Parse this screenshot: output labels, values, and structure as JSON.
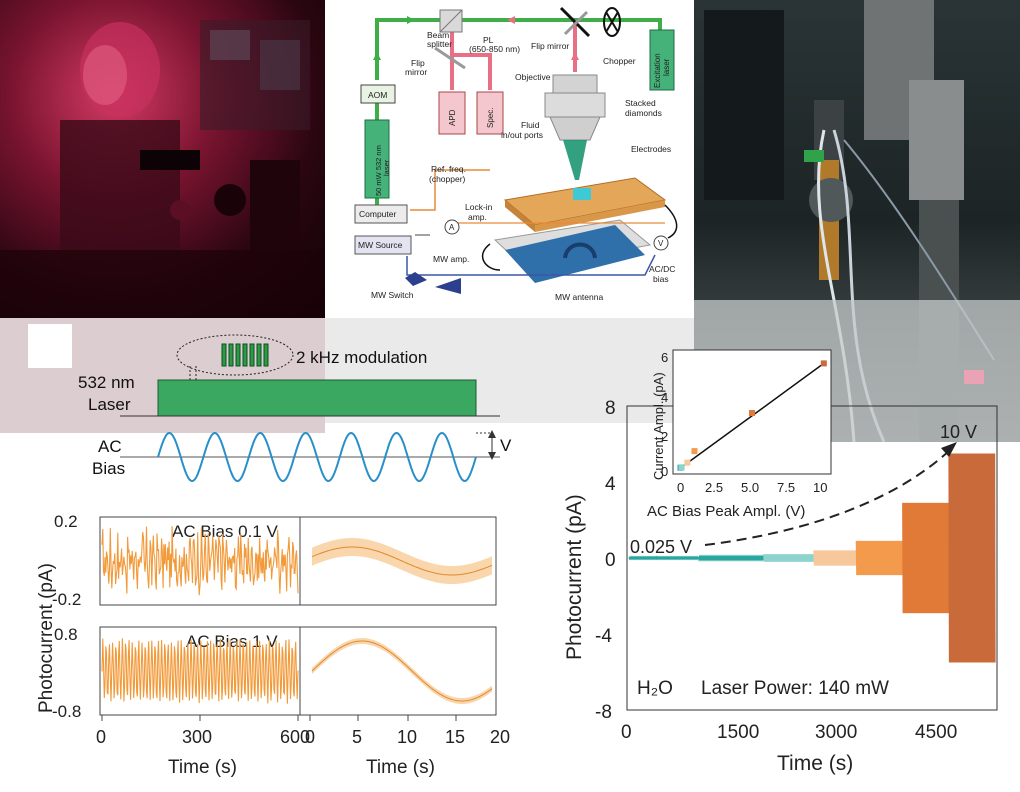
{
  "figure": {
    "schematic": {
      "labels": {
        "beam_splitter": "Beam\nsplitter",
        "pl": "PL\n(650-850 nm)",
        "flip_mirror_top": "Flip mirror",
        "chopper": "Chopper",
        "excitation_laser": "Excitation\nlaser",
        "flip_mirror_left": "Flip\nmirror",
        "objective": "Objective",
        "aom": "AOM",
        "laser_50mw": "50 mW 532 nm\nlaser",
        "apd": "APD",
        "spec": "Spec.",
        "fluid_ports": "Fluid\nin/out ports",
        "stacked_diamonds": "Stacked\ndiamonds",
        "electrodes": "Electrodes",
        "ref_freq": "Ref. freq.\n(chopper)",
        "computer": "Computer",
        "lockin": "Lock-in\namp.",
        "a_meter": "A",
        "v_meter": "V",
        "mw_source": "MW Source",
        "mw_amp": "MW amp.",
        "mw_switch": "MW Switch",
        "mw_antenna": "MW antenna",
        "acdc_bias": "AC/DC\nbias"
      }
    },
    "timing": {
      "modulation_label": "2 kHz modulation",
      "laser_label": "532 nm\nLaser",
      "ac_label": "AC",
      "bias_label": "Bias",
      "v_label": "V"
    },
    "left_plots": {
      "ylabel": "Photocurrent (pA)",
      "xlabel_left": "Time (s)",
      "xlabel_right": "Time (s)",
      "top_title": "AC Bias 0.1 V",
      "bottom_title": "AC Bias 1 V",
      "top_yticks": [
        "0.2",
        "-0.2"
      ],
      "bottom_yticks": [
        "0.8",
        "-0.8"
      ],
      "x_ticks_left": [
        "0",
        "300",
        "600"
      ],
      "x_ticks_right": [
        "0",
        "5",
        "10",
        "15",
        "20"
      ]
    },
    "right_plot": {
      "ylabel": "Photocurrent (pA)",
      "xlabel": "Time (s)",
      "yticks": [
        "8",
        "4",
        "0",
        "-4",
        "-8"
      ],
      "xticks": [
        "0",
        "1500",
        "3000",
        "4500"
      ],
      "ann_low": "0.025 V",
      "ann_high": "10 V",
      "solvent": "H₂O",
      "power": "Laser Power: 140 mW",
      "inset": {
        "ylabel": "Current Ampl. (pA)",
        "xlabel": "AC Bias Peak Ampl. (V)",
        "yticks": [
          "6",
          "4",
          "2",
          "0"
        ],
        "xticks": [
          "0",
          "2.5",
          "5.0",
          "7.5",
          "10"
        ]
      }
    }
  },
  "chart_data": [
    {
      "type": "line",
      "ylabel": "Photocurrent (pA)",
      "xlabel": "Time (s)",
      "xlim": [
        0,
        600
      ],
      "ylim": [
        -0.2,
        0.2
      ],
      "annotation": "AC Bias 0.1 V"
    },
    {
      "type": "line",
      "xlabel": "Time (s)",
      "xlim": [
        0,
        20
      ],
      "annotation": "AC Bias 0.1 V"
    },
    {
      "type": "line",
      "ylabel": "Photocurrent (pA)",
      "xlabel": "Time (s)",
      "xlim": [
        0,
        600
      ],
      "ylim": [
        -0.8,
        0.8
      ],
      "annotation": "AC Bias 1 V"
    },
    {
      "type": "line",
      "xlabel": "Time (s)",
      "xlim": [
        0,
        20
      ],
      "annotation": "AC Bias 1 V"
    },
    {
      "type": "line",
      "xlabel": "Time (s)",
      "ylabel": "Photocurrent (pA)",
      "xlim": [
        0,
        4800
      ],
      "ylim": [
        -8,
        8
      ],
      "segments": [
        {
          "bias": "0.025 V",
          "t_start": 0,
          "t_end": 900,
          "amplitude": 0.03,
          "color": "#2aa6a0"
        },
        {
          "t_start": 900,
          "t_end": 1750,
          "amplitude": 0.05,
          "color": "#2aa6a0"
        },
        {
          "t_start": 1750,
          "t_end": 2400,
          "amplitude": 0.2,
          "color": "#8fd3cf"
        },
        {
          "t_start": 2400,
          "t_end": 2950,
          "amplitude": 0.4,
          "color": "#f6c89c"
        },
        {
          "t_start": 2950,
          "t_end": 3550,
          "amplitude": 0.9,
          "color": "#f39a4c"
        },
        {
          "t_start": 3550,
          "t_end": 4150,
          "amplitude": 2.9,
          "color": "#e07a36"
        },
        {
          "bias": "10 V",
          "t_start": 4150,
          "t_end": 4750,
          "amplitude": 5.5,
          "color": "#c96a3a"
        }
      ]
    },
    {
      "type": "scatter",
      "xlabel": "AC Bias Peak Ampl. (V)",
      "ylabel": "Current Ampl. (pA)",
      "xlim": [
        -0.5,
        10.5
      ],
      "ylim": [
        -0.3,
        6.2
      ],
      "x": [
        0.025,
        0.1,
        0.5,
        1,
        5,
        10
      ],
      "y": [
        0.03,
        0.05,
        0.3,
        0.9,
        2.9,
        5.5
      ],
      "fit": "linear"
    }
  ]
}
